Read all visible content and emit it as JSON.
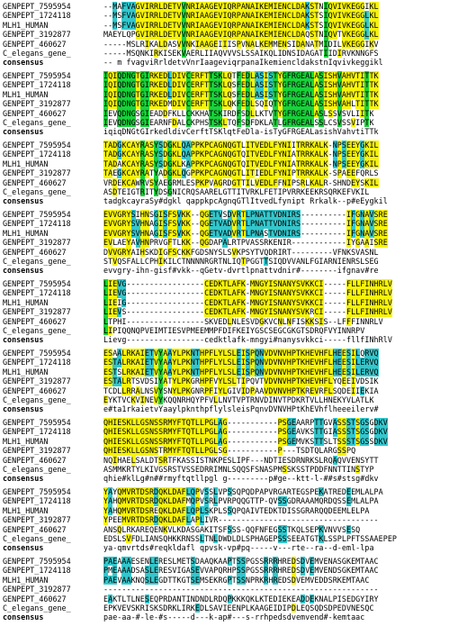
{
  "colors": {
    "identical": "#18d23a",
    "conserved": "#f7f30a",
    "similar": "#33c7cc"
  },
  "blocks": [
    {
      "rows": [
        {
          "name": "GENPEPT_7595954",
          "seq": "--MAFVAGVIRRLDETVVNRIAAGEVIQRPANAIKEMIENCLDAKSTNIQVIVKEGGIKL"
        },
        {
          "name": "GENPEPT_1724118",
          "seq": "--MSFVAGVIRRLDETVVNRIAAGEVIQRPANAIKEMIENCLDAKSTSIQVIVKEGGLKL"
        },
        {
          "name": "MLH1_HUMAN",
          "seq": "--MSFVAGVIRRLDETVVNRIAAGEVIQRPANAIKEMIENCLDAKSTSIQVIVKEGGLKL"
        },
        {
          "name": "GENPEPT_3192877",
          "seq": "MAEYLQPGVIRRLDETVVNRIAAGEVIQRPANAIKEMIENCLDAQSTNIQVTVKEGGLKL"
        },
        {
          "name": "GENPEPT_460627",
          "seq": "-----MSLRIKALDASVVNKIAAGEIIISPVNALKEMMENSIDANATMIDILVKEGGIKV"
        },
        {
          "name": "C_elegans_gene_",
          "seq": "-----MSQNKIRKISEKVAERLIIAQVVVSLSSAIKQLIDNSIDAGATIIDIRVKNNGFS"
        },
        {
          "name": "consensus",
          "seq": "-- m fvagviRrldetvVnrIaageviqrpanaIkemiencldakstnIqvivkeggikl"
        }
      ]
    },
    {
      "rows": [
        {
          "name": "GENPEPT_7595954",
          "seq": "IQIQDNGTGIRKEDLDIVCERFTTSKLQTFEDLASISTYGFRGEALASISHVAHVTITTK"
        },
        {
          "name": "GENPEPT_1724118",
          "seq": "IQIQDNGTGIRKEDLDIVCERFTTSKLQSFEDLASISTYGFRGEALASISHVAHVTITTK"
        },
        {
          "name": "MLH1_HUMAN",
          "seq": "IQIQDNGTGIRKEDLDIVCERFTTSKLQSFEDLASISTYGFRGEALASISHVAHVTITTK"
        },
        {
          "name": "GENPEPT_3192877",
          "seq": "IQIQDNGTGIRKEDMDIVCERFTTSKLQKFEDLSQIQTYGFRGEALASISHVAHLTITTK"
        },
        {
          "name": "GENPEPT_460627",
          "seq": "IEVQDNGSGIEADDFKLLCKKHATSKIRDFSDLLKTVTYGFRGEALASLSSVSVLIITK"
        },
        {
          "name": "C_elegans_gene_",
          "seq": "IEVQDNGSGIEARNFDALCKPHSTSKLTQFSDFDKLATLGFRGEALSSLCSVSSVIPTK"
        },
        {
          "name": "consensus",
          "seq": "iqiqDNGtGIrkedldivCerftTSKlqtFeDla-isTyGFRGEALasishVahvtiTTk"
        }
      ]
    },
    {
      "rows": [
        {
          "name": "GENPEPT_7595954",
          "seq": "TADGKCAYRASYSDGKLQAPPKPCAGNQGTLITVEDLFYNIITRRKALK-NPSEEYGKIL"
        },
        {
          "name": "GENPEPT_1724118",
          "seq": "TADGKCAYRASYSDGKLQAPPKPCAGNQGTQITVEDLFYNIATRRKALK-NPSEEYGKIL"
        },
        {
          "name": "MLH1_HUMAN",
          "seq": "TADAKCAYRASYSDGKLKAPPKPCAGNQGTQITVEDLFYNIATRRKALK-NPSEEYGKIL"
        },
        {
          "name": "GENPEPT_3192877",
          "seq": "TAEGKCAYRATYADGKLQGPPKPCAGNQGTLITIEDLFYNIPTRRKALK-SPAEEFQRLS"
        },
        {
          "name": "GENPEPT_460627",
          "seq": "VRDEKCAWRVSYAEGRMLESPKPVAGRDGTTILVEDLFFNIPSRLKALR-SHNDEYSKIL"
        },
        {
          "name": "C_elegans_gene_",
          "seq": "ASDTEIGTRITYDSGNICRQSAARELGTTITVRKLFETIPVRRKEEKRSQRKEFVKIL"
        },
        {
          "name": "consensus",
          "seq": "tadgkcayraSy#dgkl qappkpcAgnqGTlItvedLfynipt Rrkalk--p#eEygkil"
        }
      ]
    },
    {
      "rows": [
        {
          "name": "GENPEPT_7595954",
          "seq": "EVVGRYSIHNSGISFSVKK--QGETVSDVRTLPNATTVDNIRS----------IFGNAVSRE"
        },
        {
          "name": "GENPEPT_1724118",
          "seq": "EVVGRYSVHNAGISFSVKK--QGETVADVRTLPNATTVDNIRS----------IFGNAVSRE"
        },
        {
          "name": "MLH1_HUMAN",
          "seq": "EVVGRYSVHNAGISFSVKK--QGETVADVRTLPNASTVDNIRS----------IFGNAVSRE"
        },
        {
          "name": "GENPEPT_3192877",
          "seq": "EVLAEYAVHNPRVGFTLKK--QGDAPALRTPVASSRKENIR------------IYGAAISRE"
        },
        {
          "name": "GENPEPT_460627",
          "seq": "DVVGRYAIHSKDIGFSCKKFGDSNYSLSVKPSYTVQDRIRT---------VFNKSVASNL"
        },
        {
          "name": "C_elegans_gene_",
          "seq": "STVQSFALLCPHIKILCTNNNNRGRTNLIQTPGGTTSIQDVVANLFGIARNIENRSLSEG"
        },
        {
          "name": "consensus",
          "seq": "evvgry-ihn-gisf#vkk--qGetv-dvrtlpnattvdnir#--------ifgnav#re"
        }
      ]
    },
    {
      "rows": [
        {
          "name": "GENPEPT_7595954",
          "seq": "LIEVG-----------------CEDKTLAFK-MNGYISNANYSVKKCI-----FLLFINHRLV"
        },
        {
          "name": "GENPEPT_1724118",
          "seq": "LIEVG-----------------CEDKTLAFK-MNGYISNANYSVKKCI-----FLLFINHRLV"
        },
        {
          "name": "MLH1_HUMAN",
          "seq": "LIEIG-----------------CEDKTLAFK-MNGYISNANYSVKKCI-----FLLFINHRLV"
        },
        {
          "name": "GENPEPT_3192877",
          "seq": "LIEVS-----------------CEDKTLAFK-MNGYISNANYSVKRCI-----FLLFINHRLV"
        },
        {
          "name": "GENPEPT_460627",
          "seq": "LTPHI-----------------SKVEDLNLESVDGKVCNLNFISKKSIS--LFFFINNRLV"
        },
        {
          "name": "C_elegans_gene_",
          "seq": "LIPIQQNQPVEIMTIESVPMEEMMPFDIFKEIYGSCSEGCGKGTSDRQFVYINNRPV"
        },
        {
          "name": "consensus",
          "seq": "Lievg-----------------cedktlafk-mngyi#nanysvkkci-----fllfINhRlV"
        }
      ]
    },
    {
      "rows": [
        {
          "name": "GENPEPT_7595954",
          "seq": "ESAALRKAIETVYAAYLPKNTHPFLYLSLEISPQNVDVNVHPTKHEVHFLHEESILQRVQ"
        },
        {
          "name": "GENPEPT_1724118",
          "seq": "ESTALRKAIETVYAAYLPKNTHPFLYLSLEISPQNVDVNVHPTKHEVHFLHEESILERVQ"
        },
        {
          "name": "MLH1_HUMAN",
          "seq": "ESTSLRKAIETVYAAYLPKNTHPFLYLSLEISPQNVDVNVHPTKHEVHFLHEESILERVQ"
        },
        {
          "name": "GENPEPT_3192877",
          "seq": "ESTALRTSVDSIYATYLPKGRHPFVYLSLTIPQVTVDVNVHPTKHEVHFLYQEEIVDSIK"
        },
        {
          "name": "GENPEPT_460627",
          "seq": "TCDLLRRALNSVYSNYLPKGNRPFIYLGIVIDPAAVDVNVHPTKREVRFLSQDEIIEKIA"
        },
        {
          "name": "C_elegans_gene_",
          "seq": "EYKTVCKVINEVYKQQNRHQYPFVLLNVTVPTRNVDINVTPDKRTVLLHNEKYVLATLK"
        },
        {
          "name": "consensus",
          "seq": "e#ta1rkaietvYaaylpknthpflylsleisPqnvDVNVHPtKhEVhflheeeilerv#"
        }
      ]
    },
    {
      "rows": [
        {
          "name": "GENPEPT_7595954",
          "seq": "QHIESKLLGSNSSRMYFTQTLLPGLAG-----------PSGEAARPTTGVASSSTSGSGDKV"
        },
        {
          "name": "GENPEPT_1724118",
          "seq": "QHIESKLLGSNSSRMYFTQTLLPGLAG-----------PSGEAVKSTTGIASSSTSGSGDKV"
        },
        {
          "name": "MLH1_HUMAN",
          "seq": "QHIESKLLGSNSSRMYFTQTLLPGLAG-----------PSGEMVKSTTSLTSSSTSGSSDKV"
        },
        {
          "name": "GENPEPT_3192877",
          "seq": "QHIESKLLGSNSTRMYFTQTLLPGLSG-----------P---TSDTQLARGSSPQ"
        },
        {
          "name": "GENPEPT_460627",
          "seq": "NQIHAELSALDTSRTFKASSISTNKPESLIPF---NDTIESDRNRKSLRQAQVVENSYTT"
        },
        {
          "name": "C_elegans_gene_",
          "seq": "ASMMKRTYLKIVGSRSTVSSEDRRIMNLSQQSFSNASPMSSKSSTPDDFNNTTINSTYP"
        },
        {
          "name": "consensus",
          "seq": "qhie#klLg#n##rmyftqtllpgl g---------p#ge--ktt-l-##s#stsg#dkv"
        }
      ]
    },
    {
      "rows": [
        {
          "name": "GENPEPT_7595954",
          "seq": "YAYQMVRTDSRDQKLDAFLQPVSSLVPSSQPQDPAPVRGARTEGSPEKATREDEEMLALPA"
        },
        {
          "name": "GENPEPT_1724118",
          "seq": "YAHQMVRTDSRDQKLDAFMQPVSRLPVRPQQGTTP-QVSSGDRAAAMQRDQSSEMLALPA"
        },
        {
          "name": "MLH1_HUMAN",
          "seq": "YAHQMVRTDSREQKLDAFLQPLSKPLSSQPQAIVTEDKTDISSGRARQQDEEMLELPA"
        },
        {
          "name": "GENPEPT_3192877",
          "seq": "YPEEMVRTDSRDQKLDAFLAPLIVR-----------------------------------"
        },
        {
          "name": "GENPEPT_460627",
          "seq": "ANSQLRKAREQENKVLKDASGAKITSFSSS-QQFNFEGSSTKQLSEPKVNVVSESQ"
        },
        {
          "name": "C_elegans_gene_",
          "seq": "EDSLSVFDLIANSQHKKRNSSLTNLDWDLDLSPHAGEPSSSEEATGTKLSSPLPFTSSAAEPEPW"
        },
        {
          "name": "consensus",
          "seq": "ya-qmvrtds#reqkldafl qpvsk-vp#pq-----v---rte--ra--d-eml-lpa"
        }
      ]
    },
    {
      "rows": [
        {
          "name": "GENPEPT_7595954",
          "seq": "PAEAAAESENLERESLMETSDAAQKAAPTSSPGSSRRRHREDSDVEMVENASGKEMTAAC"
        },
        {
          "name": "GENPEPT_1724118",
          "seq": "PMEAAADSASLERESVIGASEVVAPQRHPSSPGSSRRRHREDSDVEMVENDSGKEMTAAC"
        },
        {
          "name": "MLH1_HUMAN",
          "seq": "PAEVAAKNQSLEGDTTKGTSEMSEKRGPTSSNPRKRHREDSDVEMVEDDSRKEMTAAC"
        },
        {
          "name": "GENPEPT_3192877",
          "seq": "------------------------------------------------------------"
        },
        {
          "name": "GENPEPT_460627",
          "seq": "EAKTLTLNESEQPRDANTINDNDLRDQPKKKQKLKTEDIEKEADDEKNALPISEDGYIRY"
        },
        {
          "name": "C_elegans_gene_",
          "seq": "EPKVEVSKRISKSDRKLIRKEDLSAVIEENPLKAAGEIDIPDLEQSQDSDPEDVNESQC"
        },
        {
          "name": "consensus",
          "seq": "pae-aa-#-le-#s-----d---k-ap#---s-rrhpedsdvemvend#-kemtaac"
        }
      ]
    }
  ]
}
